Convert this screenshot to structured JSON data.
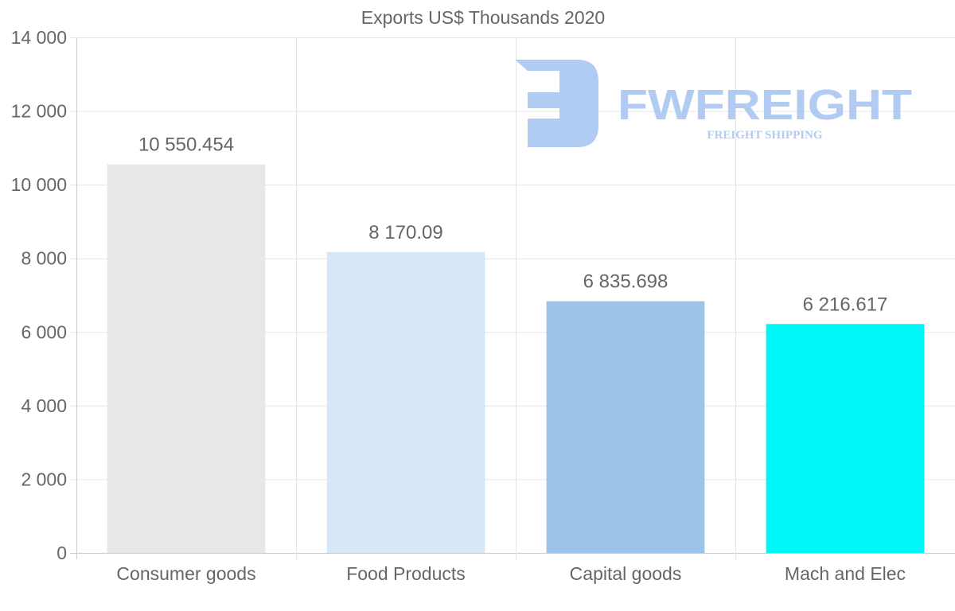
{
  "chart_data": {
    "type": "bar",
    "title": "Exports US$ Thousands 2020",
    "xlabel": "",
    "ylabel": "",
    "categories": [
      "Consumer goods",
      "Food Products",
      "Capital goods",
      "Mach and Elec"
    ],
    "values": [
      10550.454,
      8170.09,
      6835.698,
      6216.617
    ],
    "value_labels": [
      "10 550.454",
      "8 170.09",
      "6 835.698",
      "6 216.617"
    ],
    "colors": [
      "#e8e8e8",
      "#d6e7f8",
      "#9cc4e8",
      "#00f6f6"
    ],
    "ylim": [
      0,
      14000
    ],
    "yticks": [
      0,
      2000,
      4000,
      6000,
      8000,
      10000,
      12000,
      14000
    ],
    "ytick_labels": [
      "0",
      "2 000",
      "4 000",
      "6 000",
      "8 000",
      "10 000",
      "12 000",
      "14 000"
    ],
    "grid": true,
    "legend": "none"
  },
  "watermark": {
    "brand": "FWFREIGHT",
    "tagline": "FREIGHT SHIPPING",
    "color": "#a9c6f2"
  }
}
